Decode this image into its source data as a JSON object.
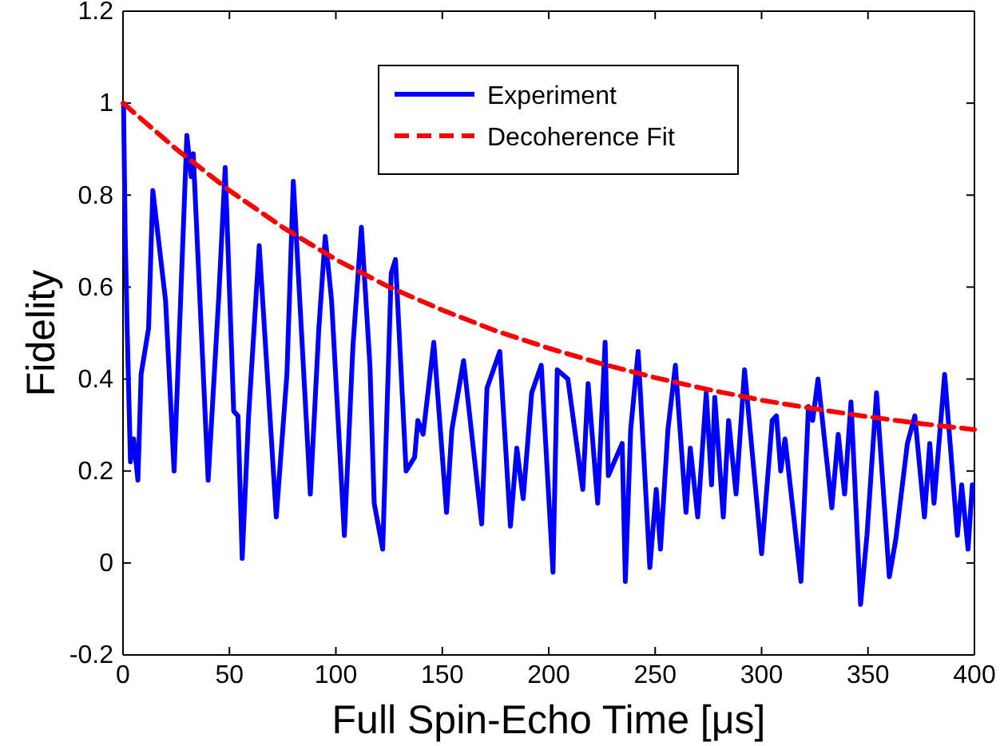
{
  "chart_data": {
    "type": "line",
    "xlabel": "Full Spin-Echo Time [μs]",
    "ylabel": "Fidelity",
    "xlim": [
      0,
      400
    ],
    "xticks": [
      0,
      50,
      100,
      150,
      200,
      250,
      300,
      350,
      400
    ],
    "ylim": [
      -0.2,
      1.2
    ],
    "yticks": [
      -0.2,
      0,
      0.2,
      0.4,
      0.6,
      0.8,
      1,
      1.2
    ],
    "grid": false,
    "legend": "top right",
    "marker": "none",
    "series": [
      {
        "name": "Experiment",
        "color": "#0000ff",
        "line_style": "solid",
        "x": [
          0.25,
          1,
          2,
          3.5,
          5,
          7,
          8.5,
          12,
          14,
          20,
          24,
          30,
          32,
          33,
          40,
          45,
          48,
          52,
          54,
          56,
          59,
          64,
          72,
          77,
          80,
          88,
          92,
          95,
          98,
          104,
          108,
          112,
          116,
          118,
          122,
          126,
          128,
          133,
          137,
          138.5,
          141,
          146,
          152,
          154.5,
          160,
          168.5,
          171,
          177,
          182,
          185,
          188,
          192,
          196.5,
          202,
          204,
          209,
          216,
          218.5,
          223,
          226.5,
          228,
          234.5,
          236,
          238.5,
          242,
          247.5,
          250.5,
          252.5,
          256,
          259.5,
          264.5,
          266.5,
          270,
          274,
          276.5,
          278,
          282,
          284.5,
          288,
          292,
          300,
          305,
          307,
          309,
          311,
          318.5,
          322,
          324,
          326.5,
          333,
          336,
          339,
          342,
          346.5,
          349.5,
          354,
          360,
          363,
          368.5,
          372,
          376.5,
          379,
          381,
          386,
          392,
          394,
          397,
          399
        ],
        "values": [
          1.0,
          0.72,
          0.5,
          0.22,
          0.27,
          0.18,
          0.41,
          0.51,
          0.81,
          0.57,
          0.2,
          0.93,
          0.84,
          0.89,
          0.18,
          0.58,
          0.86,
          0.33,
          0.32,
          0.01,
          0.32,
          0.69,
          0.1,
          0.41,
          0.83,
          0.15,
          0.51,
          0.71,
          0.57,
          0.06,
          0.47,
          0.73,
          0.43,
          0.13,
          0.03,
          0.63,
          0.66,
          0.2,
          0.23,
          0.31,
          0.28,
          0.48,
          0.11,
          0.29,
          0.44,
          0.085,
          0.38,
          0.46,
          0.08,
          0.25,
          0.14,
          0.37,
          0.43,
          -0.02,
          0.42,
          0.4,
          0.16,
          0.39,
          0.13,
          0.48,
          0.19,
          0.26,
          -0.04,
          0.29,
          0.46,
          -0.01,
          0.16,
          0.03,
          0.29,
          0.43,
          0.11,
          0.25,
          0.1,
          0.37,
          0.17,
          0.36,
          0.1,
          0.31,
          0.15,
          0.42,
          0.02,
          0.31,
          0.32,
          0.2,
          0.27,
          -0.04,
          0.34,
          0.31,
          0.4,
          0.12,
          0.28,
          0.15,
          0.35,
          -0.09,
          0.06,
          0.37,
          -0.03,
          0.05,
          0.26,
          0.32,
          0.1,
          0.26,
          0.13,
          0.41,
          0.06,
          0.17,
          0.03,
          0.17
        ]
      },
      {
        "name": "Decoherence Fit",
        "color": "#ff0000",
        "line_style": "dashed",
        "x": [
          0,
          25,
          50,
          75,
          100,
          125,
          150,
          175,
          200,
          225,
          250,
          275,
          300,
          325,
          350,
          375,
          400
        ],
        "values": [
          1,
          0.9,
          0.81,
          0.73,
          0.66,
          0.6,
          0.55,
          0.505,
          0.467,
          0.433,
          0.403,
          0.377,
          0.354,
          0.335,
          0.318,
          0.303,
          0.29
        ]
      }
    ]
  }
}
